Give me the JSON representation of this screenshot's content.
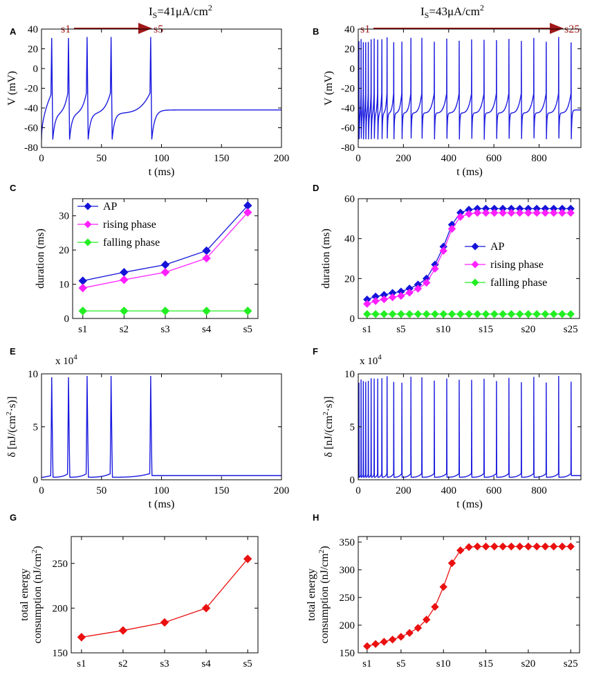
{
  "colors": {
    "trace": "#1a1adf",
    "ap": "#1414d9",
    "rising": "#ff1fff",
    "falling": "#22ee22",
    "energy": "#ea1010",
    "arrow": "#a01818"
  },
  "chart_data": [
    {
      "id": "A",
      "type": "line",
      "panel_label": "A",
      "title_main": "I",
      "title_sub": "S",
      "title_rest": "=41μA/cm",
      "title_sup": "2",
      "xlabel": "t (ms)",
      "ylabel": "V (mV)",
      "xlim": [
        0,
        200
      ],
      "ylim": [
        -80,
        40
      ],
      "xticks": [
        0,
        50,
        100,
        150,
        200
      ],
      "xtick_labels": [
        "0",
        "50",
        "100",
        "150",
        "200"
      ],
      "yticks": [
        -80,
        -60,
        -40,
        -20,
        0,
        20,
        40
      ],
      "ytick_labels": [
        "-80",
        "-60",
        "-40",
        "-20",
        "0",
        "20",
        "40"
      ],
      "spike_times": [
        8.5,
        22.5,
        38,
        58,
        91
      ],
      "resting": -42,
      "peak": 32,
      "trough": -72,
      "seq_start": "s1",
      "seq_end": "s5"
    },
    {
      "id": "B",
      "type": "line",
      "panel_label": "B",
      "title_main": "I",
      "title_sub": "S",
      "title_rest": "=43μA/cm",
      "title_sup": "2",
      "xlabel": "t (ms)",
      "ylabel": "V (mV)",
      "xlim": [
        0,
        985
      ],
      "ylim": [
        -80,
        40
      ],
      "xticks": [
        0,
        200,
        400,
        600,
        800
      ],
      "xtick_labels": [
        "0",
        "200",
        "400",
        "600",
        "800"
      ],
      "yticks": [
        -80,
        -60,
        -40,
        -20,
        0,
        20,
        40
      ],
      "ytick_labels": [
        "-80",
        "-60",
        "-40",
        "-20",
        "0",
        "20",
        "40"
      ],
      "spike_times": [
        3,
        12.5,
        22.5,
        33,
        44.5,
        57,
        70.5,
        86,
        104.5,
        127.5,
        157,
        193,
        233,
        281.5,
        336.5,
        391.5,
        446.5,
        501.5,
        556.5,
        611.5,
        666.5,
        721.5,
        776.5,
        831.5,
        886.5,
        941.5
      ],
      "resting": -42,
      "peak": 32,
      "trough": -72,
      "seq_start": "s1",
      "seq_end": "s25"
    },
    {
      "id": "C",
      "type": "line",
      "panel_label": "C",
      "xlabel": "",
      "ylabel": "duration (ms)",
      "ylim": [
        0,
        35
      ],
      "categories": [
        "s1",
        "s2",
        "s3",
        "s4",
        "s5"
      ],
      "yticks": [
        0,
        10,
        20,
        30
      ],
      "ytick_labels": [
        "0",
        "10",
        "20",
        "30"
      ],
      "series": [
        {
          "name": "AP",
          "values": [
            11,
            13.5,
            15.7,
            19.8,
            33
          ]
        },
        {
          "name": "rising phase",
          "values": [
            8.9,
            11.3,
            13.5,
            17.6,
            31
          ]
        },
        {
          "name": "falling phase",
          "values": [
            2.2,
            2.2,
            2.2,
            2.2,
            2.2
          ]
        }
      ]
    },
    {
      "id": "D",
      "type": "line",
      "panel_label": "D",
      "xlabel": "",
      "ylabel": "duration (ms)",
      "ylim": [
        0,
        60
      ],
      "xcount": 25,
      "xtick_positions": [
        1,
        5,
        10,
        15,
        20,
        25
      ],
      "xtick_labels": [
        "s1",
        "s5",
        "s10",
        "s15",
        "s20",
        "s25"
      ],
      "yticks": [
        0,
        20,
        40,
        60
      ],
      "ytick_labels": [
        "0",
        "20",
        "40",
        "60"
      ],
      "series": [
        {
          "name": "AP",
          "values": [
            9.5,
            11,
            11.8,
            12.8,
            13.5,
            15,
            17,
            20,
            27,
            36,
            47,
            53,
            54.5,
            55,
            55,
            55,
            55,
            55,
            55,
            55,
            55,
            55,
            55,
            55,
            55
          ]
        },
        {
          "name": "rising phase",
          "values": [
            7.3,
            8.7,
            9.6,
            10.6,
            11.3,
            12.9,
            14.9,
            17.9,
            24.9,
            33.9,
            44.9,
            50.9,
            52.4,
            52.9,
            52.9,
            52.9,
            52.9,
            52.9,
            52.9,
            52.9,
            52.9,
            52.9,
            52.9,
            52.9,
            52.9
          ]
        },
        {
          "name": "falling phase",
          "values": [
            2.2,
            2.2,
            2.2,
            2.2,
            2.2,
            2.2,
            2.2,
            2.2,
            2.2,
            2.2,
            2.2,
            2.2,
            2.2,
            2.2,
            2.2,
            2.2,
            2.2,
            2.2,
            2.2,
            2.2,
            2.2,
            2.2,
            2.2,
            2.2,
            2.2
          ]
        }
      ]
    },
    {
      "id": "E",
      "type": "line",
      "panel_label": "E",
      "xlabel": "t (ms)",
      "ylabel": "δ [nJ/(cm",
      "ylabel_sup": "2",
      "ylabel_end": "·s)]",
      "multiplier": "x 10",
      "multiplier_exp": "4",
      "xlim": [
        0,
        200
      ],
      "ylim": [
        0,
        10
      ],
      "xticks": [
        0,
        50,
        100,
        150,
        200
      ],
      "xtick_labels": [
        "0",
        "50",
        "100",
        "150",
        "200"
      ],
      "yticks": [
        0,
        5,
        10
      ],
      "ytick_labels": [
        "0",
        "5",
        "10"
      ],
      "spike_times": [
        8.5,
        22.5,
        38,
        58,
        91
      ],
      "peak": 9.8,
      "baseline": 0.4
    },
    {
      "id": "F",
      "type": "line",
      "panel_label": "F",
      "xlabel": "t (ms)",
      "ylabel": "δ [nJ/(cm",
      "ylabel_sup": "2",
      "ylabel_end": "·s)]",
      "multiplier": "x 10",
      "multiplier_exp": "4",
      "xlim": [
        0,
        985
      ],
      "ylim": [
        0,
        10
      ],
      "xticks": [
        0,
        200,
        400,
        600,
        800
      ],
      "xtick_labels": [
        "0",
        "200",
        "400",
        "600",
        "800"
      ],
      "yticks": [
        0,
        5,
        10
      ],
      "ytick_labels": [
        "0",
        "5",
        "10"
      ],
      "spike_times": [
        3,
        12.5,
        22.5,
        33,
        44.5,
        57,
        70.5,
        86,
        104.5,
        127.5,
        157,
        193,
        233,
        281.5,
        336.5,
        391.5,
        446.5,
        501.5,
        556.5,
        611.5,
        666.5,
        721.5,
        776.5,
        831.5,
        886.5,
        941.5
      ],
      "peak": 9.8,
      "baseline": 0.4
    },
    {
      "id": "G",
      "type": "line",
      "panel_label": "G",
      "ylabel_line1": "total energy",
      "ylabel_line2": "consumption (nJ/cm",
      "ylabel_sup": "2",
      "ylabel_end": ")",
      "categories": [
        "s1",
        "s2",
        "s3",
        "s4",
        "s5"
      ],
      "ylim": [
        150,
        280
      ],
      "yticks": [
        150,
        200,
        250
      ],
      "ytick_labels": [
        "150",
        "200",
        "250"
      ],
      "series": [
        {
          "name": "total energy",
          "values": [
            167.5,
            175,
            184,
            200,
            255
          ]
        }
      ]
    },
    {
      "id": "H",
      "type": "line",
      "panel_label": "H",
      "ylabel_line1": "total energy",
      "ylabel_line2": "consumption (nJ/cm",
      "ylabel_sup": "2",
      "ylabel_end": ")",
      "xcount": 25,
      "xtick_positions": [
        1,
        5,
        10,
        15,
        20,
        25
      ],
      "xtick_labels": [
        "s1",
        "s5",
        "s10",
        "s15",
        "s20",
        "s25"
      ],
      "ylim": [
        150,
        360
      ],
      "yticks": [
        150,
        200,
        250,
        300,
        350
      ],
      "ytick_labels": [
        "150",
        "200",
        "250",
        "300",
        "350"
      ],
      "series": [
        {
          "name": "total energy",
          "values": [
            162,
            166,
            170,
            174,
            179,
            186,
            195,
            210,
            233,
            269,
            312,
            335,
            341,
            342,
            342,
            342,
            342,
            342,
            342,
            342,
            342,
            342,
            342,
            342,
            342
          ]
        }
      ]
    }
  ]
}
